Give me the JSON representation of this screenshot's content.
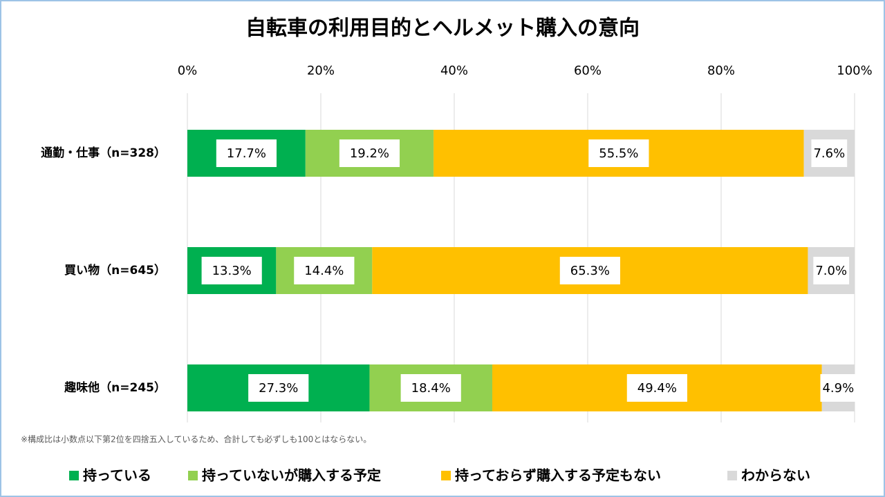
{
  "chart_data": {
    "type": "stacked-barh",
    "title": "自転車の利用目的とヘルメット購入の意向",
    "categories": [
      "通勤・仕事（n=328）",
      "買い物（n=645）",
      "趣味他（n=245）"
    ],
    "series": [
      {
        "name": "持っている",
        "color": "#00b050",
        "values": [
          17.7,
          13.3,
          27.3
        ],
        "value_labels": [
          "17.7%",
          "13.3%",
          "27.3%"
        ]
      },
      {
        "name": "持っていないが購入する予定",
        "color": "#92d050",
        "values": [
          19.2,
          14.4,
          18.4
        ],
        "value_labels": [
          "19.2%",
          "14.4%",
          "18.4%"
        ]
      },
      {
        "name": "持っておらず購入する予定もない",
        "color": "#ffc000",
        "values": [
          55.5,
          65.3,
          49.4
        ],
        "value_labels": [
          "55.5%",
          "65.3%",
          "49.4%"
        ]
      },
      {
        "name": "わからない",
        "color": "#d9d9d9",
        "values": [
          7.6,
          7.0,
          4.9
        ],
        "value_labels": [
          "7.6%",
          "7.0%",
          "4.9%"
        ]
      }
    ],
    "xlim": [
      0,
      100
    ],
    "xticks": [
      {
        "value": 0,
        "label": "0%"
      },
      {
        "value": 20,
        "label": "20%"
      },
      {
        "value": 40,
        "label": "40%"
      },
      {
        "value": 60,
        "label": "60%"
      },
      {
        "value": 80,
        "label": "80%"
      },
      {
        "value": 100,
        "label": "100%"
      }
    ],
    "grid": true,
    "legend": "bottom",
    "note": "※構成比は小数点以下第2位を四捨五入しているため、合計しても必ずしも100とはならない。"
  }
}
